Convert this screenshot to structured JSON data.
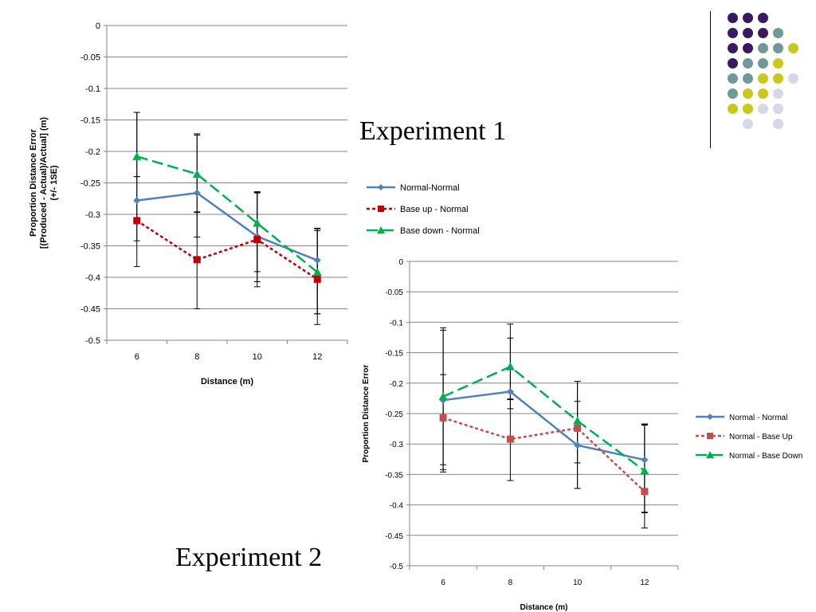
{
  "captions": {
    "experiment1": "Experiment 1",
    "experiment2": "Experiment 2"
  },
  "colors": {
    "dot_purple": "#3a1a5e",
    "dot_teal": "#6f9a99",
    "dot_yellow": "#c9c81f",
    "dot_lavender": "#d7d7e8"
  },
  "chart_data": [
    {
      "type": "line",
      "title": "",
      "xlabel": "Distance (m)",
      "ylabel": "Proportion Distance Error\n[(Produced - Actual)/Actual] (m)\n(+/- 1SE)",
      "ylim": [
        -0.5,
        0
      ],
      "yticks": [
        "0",
        "-0.05",
        "-0.1",
        "-0.15",
        "-0.2",
        "-0.25",
        "-0.3",
        "-0.35",
        "-0.4",
        "-0.45",
        "-0.5"
      ],
      "categories": [
        "6",
        "8",
        "10",
        "12"
      ],
      "grid": true,
      "legend": "right",
      "series": [
        {
          "name": "Normal-Normal",
          "values": [
            -0.278,
            -0.266,
            -0.335,
            -0.373
          ],
          "err_plus": [
            0.14,
            0.094,
            0.07,
            0.05
          ],
          "err_minus": [
            0.105,
            0.07,
            0.08,
            0.085
          ],
          "color": "#4f81bd",
          "dash": "",
          "marker": "diamond"
        },
        {
          "name": "Base up - Normal",
          "values": [
            -0.31,
            -0.372,
            -0.34,
            -0.403
          ],
          "err_plus": [
            0.07,
            0.075,
            0.076,
            0.077
          ],
          "err_minus": [
            0.032,
            0.078,
            0.067,
            0.055
          ],
          "color": "#c00000",
          "dash": "4,3",
          "marker": "square"
        },
        {
          "name": "Base down - Normal",
          "values": [
            -0.208,
            -0.236,
            -0.314,
            -0.392
          ],
          "err_plus": [
            0.07,
            0.062,
            0.048,
            0.07
          ],
          "err_minus": [
            0.032,
            0.06,
            0.077,
            0.083
          ],
          "color": "#00b050",
          "dash": "14,6",
          "marker": "triangle"
        }
      ]
    },
    {
      "type": "line",
      "title": "",
      "xlabel": "Distance (m)",
      "ylabel": "Proportion Distance Error",
      "ylim": [
        -0.5,
        0
      ],
      "yticks": [
        "0",
        "-0.05",
        "-0.1",
        "-0.15",
        "-0.2",
        "-0.25",
        "-0.3",
        "-0.35",
        "-0.4",
        "-0.45",
        "-0.5"
      ],
      "categories": [
        "6",
        "8",
        "10",
        "12"
      ],
      "grid": true,
      "legend": "right",
      "series": [
        {
          "name": "Normal - Normal",
          "values": [
            -0.228,
            -0.214,
            -0.302,
            -0.326
          ],
          "err_plus": [
            0.115,
            0.088,
            0.072,
            0.057
          ],
          "err_minus": [
            0.106,
            0.028,
            0.071,
            0.087
          ],
          "color": "#4f81bd",
          "dash": "",
          "marker": "diamond"
        },
        {
          "name": "Normal - Base Up",
          "values": [
            -0.257,
            -0.292,
            -0.274,
            -0.378
          ],
          "err_plus": [
            0.071,
            0.066,
            0.077,
            0.11
          ],
          "err_minus": [
            0.085,
            0.068,
            0.057,
            0.06
          ],
          "color": "#c0504d",
          "dash": "4,3",
          "marker": "square"
        },
        {
          "name": "Normal - Base Down",
          "values": [
            -0.222,
            -0.173,
            -0.262,
            -0.344
          ],
          "err_plus": [
            0.113,
            0.07,
            0.065,
            0.077
          ],
          "err_minus": [
            0.124,
            0.054,
            0.111,
            0.068
          ],
          "color": "#00b050",
          "dash": "14,6",
          "marker": "triangle"
        }
      ]
    }
  ]
}
